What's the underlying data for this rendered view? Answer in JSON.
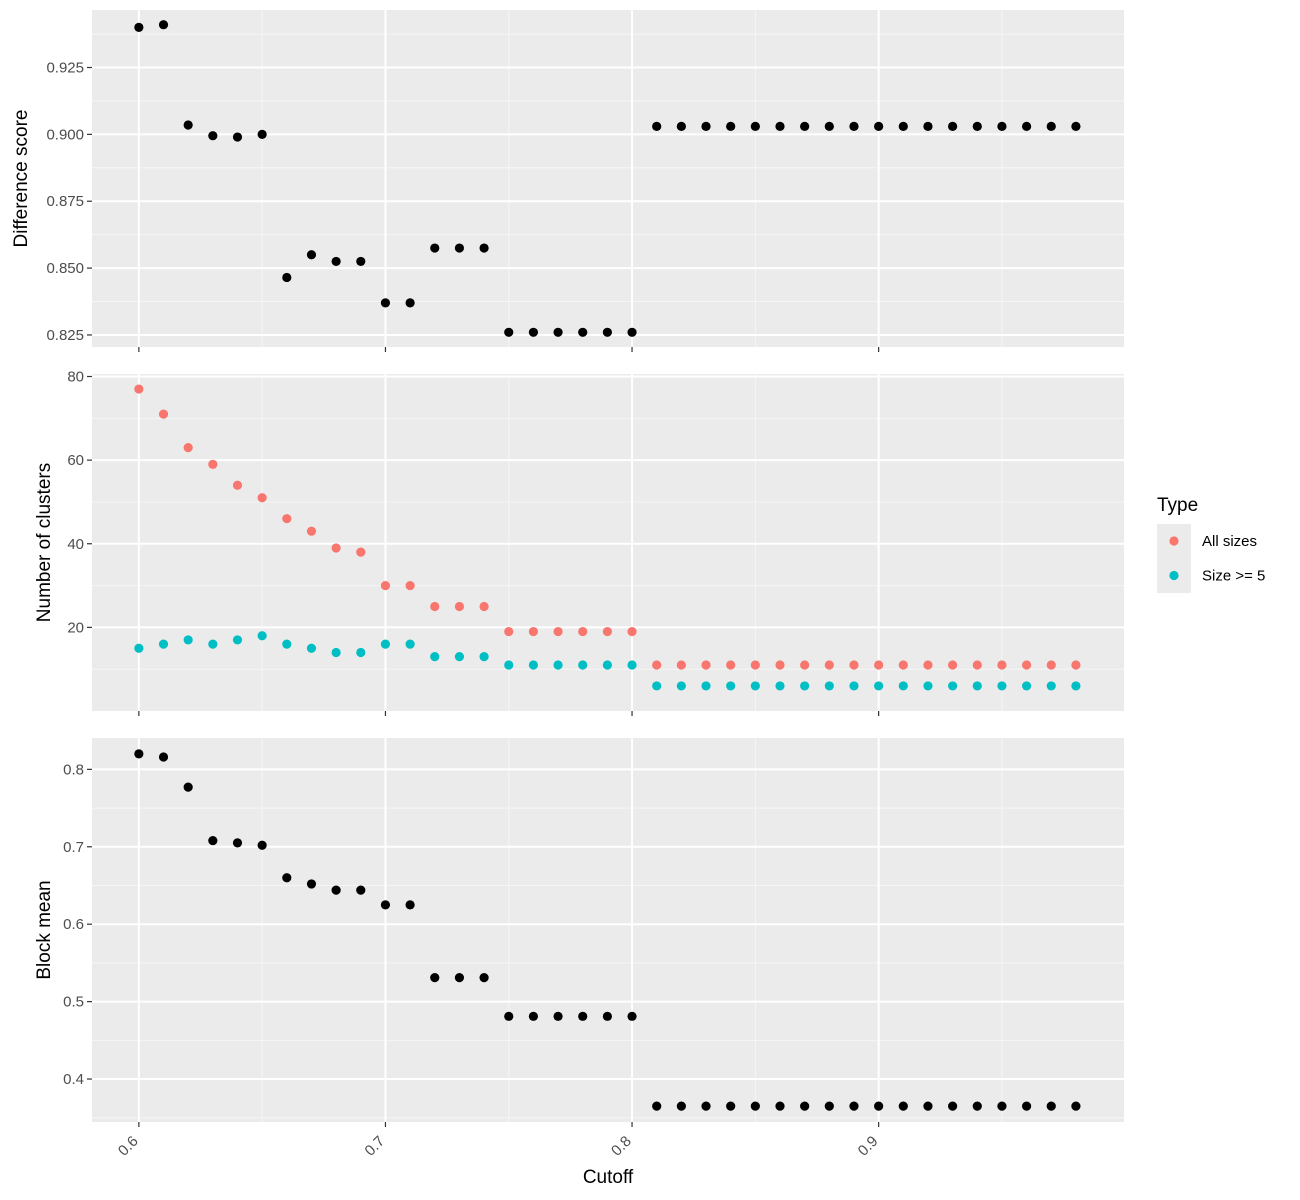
{
  "colors": {
    "panel_bg": "#ebebeb",
    "grid_major": "#ffffff",
    "grid_minor": "#f6f6f6",
    "tick": "#333333",
    "black_points": "#000000",
    "all_sizes": "#f8766d",
    "size_ge_5": "#00bfc4"
  },
  "chart_data": [
    {
      "type": "scatter",
      "ylabel": "Difference score",
      "ylim": [
        0.8205,
        0.9465
      ],
      "yticks": [
        0.825,
        0.85,
        0.875,
        0.9,
        0.925
      ],
      "ytick_labels": [
        "0.825",
        "0.850",
        "0.875",
        "0.900",
        "0.925"
      ],
      "x": [
        0.6,
        0.61,
        0.62,
        0.63,
        0.64,
        0.65,
        0.66,
        0.67,
        0.68,
        0.69,
        0.7,
        0.71,
        0.72,
        0.73,
        0.74,
        0.75,
        0.76,
        0.77,
        0.78,
        0.79,
        0.8,
        0.81,
        0.82,
        0.83,
        0.84,
        0.85,
        0.86,
        0.87,
        0.88,
        0.89,
        0.9,
        0.91,
        0.92,
        0.93,
        0.94,
        0.95,
        0.96,
        0.97,
        0.98
      ],
      "series": [
        {
          "color_key": "black_points",
          "values": [
            0.94,
            0.941,
            0.9035,
            0.8995,
            0.899,
            0.9,
            0.8465,
            0.855,
            0.8525,
            0.8525,
            0.837,
            0.837,
            0.8575,
            0.8575,
            0.8575,
            0.826,
            0.826,
            0.826,
            0.826,
            0.826,
            0.826,
            0.903,
            0.903,
            0.903,
            0.903,
            0.903,
            0.903,
            0.903,
            0.903,
            0.903,
            0.903,
            0.903,
            0.903,
            0.903,
            0.903,
            0.903,
            0.903,
            0.903,
            0.903
          ]
        }
      ],
      "grid": true
    },
    {
      "type": "scatter",
      "ylabel": "Number of clusters",
      "ylim": [
        0,
        80.6
      ],
      "yticks": [
        20,
        40,
        60,
        80
      ],
      "ytick_labels": [
        "20",
        "40",
        "60",
        "80"
      ],
      "x": [
        0.6,
        0.61,
        0.62,
        0.63,
        0.64,
        0.65,
        0.66,
        0.67,
        0.68,
        0.69,
        0.7,
        0.71,
        0.72,
        0.73,
        0.74,
        0.75,
        0.76,
        0.77,
        0.78,
        0.79,
        0.8,
        0.81,
        0.82,
        0.83,
        0.84,
        0.85,
        0.86,
        0.87,
        0.88,
        0.89,
        0.9,
        0.91,
        0.92,
        0.93,
        0.94,
        0.95,
        0.96,
        0.97,
        0.98
      ],
      "series": [
        {
          "name": "All sizes",
          "color_key": "all_sizes",
          "values": [
            77,
            71,
            63,
            59,
            54,
            51,
            46,
            43,
            39,
            38,
            30,
            30,
            25,
            25,
            25,
            19,
            19,
            19,
            19,
            19,
            19,
            11,
            11,
            11,
            11,
            11,
            11,
            11,
            11,
            11,
            11,
            11,
            11,
            11,
            11,
            11,
            11,
            11,
            11
          ]
        },
        {
          "name": "Size >= 5",
          "color_key": "size_ge_5",
          "values": [
            15,
            16,
            17,
            16,
            17,
            18,
            16,
            15,
            14,
            14,
            16,
            16,
            13,
            13,
            13,
            11,
            11,
            11,
            11,
            11,
            11,
            6,
            6,
            6,
            6,
            6,
            6,
            6,
            6,
            6,
            6,
            6,
            6,
            6,
            6,
            6,
            6,
            6,
            6
          ]
        }
      ],
      "grid": true,
      "legend": {
        "title": "Type",
        "placement": "right",
        "entries": [
          "All sizes",
          "Size >= 5"
        ]
      }
    },
    {
      "type": "scatter",
      "ylabel": "Block mean",
      "xlabel": "Cutoff",
      "ylim": [
        0.3445,
        0.8405
      ],
      "yticks": [
        0.4,
        0.5,
        0.6,
        0.7,
        0.8
      ],
      "ytick_labels": [
        "0.4",
        "0.5",
        "0.6",
        "0.7",
        "0.8"
      ],
      "xticks": [
        0.6,
        0.7,
        0.8,
        0.9
      ],
      "xtick_labels": [
        "0.6",
        "0.7",
        "0.8",
        "0.9"
      ],
      "x": [
        0.6,
        0.61,
        0.62,
        0.63,
        0.64,
        0.65,
        0.66,
        0.67,
        0.68,
        0.69,
        0.7,
        0.71,
        0.72,
        0.73,
        0.74,
        0.75,
        0.76,
        0.77,
        0.78,
        0.79,
        0.8,
        0.81,
        0.82,
        0.83,
        0.84,
        0.85,
        0.86,
        0.87,
        0.88,
        0.89,
        0.9,
        0.91,
        0.92,
        0.93,
        0.94,
        0.95,
        0.96,
        0.97,
        0.98
      ],
      "series": [
        {
          "color_key": "black_points",
          "values": [
            0.82,
            0.816,
            0.777,
            0.708,
            0.705,
            0.702,
            0.66,
            0.652,
            0.644,
            0.644,
            0.625,
            0.625,
            0.531,
            0.531,
            0.531,
            0.481,
            0.481,
            0.481,
            0.481,
            0.481,
            0.481,
            0.365,
            0.365,
            0.365,
            0.365,
            0.365,
            0.365,
            0.365,
            0.365,
            0.365,
            0.365,
            0.365,
            0.365,
            0.365,
            0.365,
            0.365,
            0.365,
            0.365,
            0.365
          ]
        }
      ],
      "grid": true
    }
  ],
  "xlim": [
    0.581,
    0.9995
  ]
}
